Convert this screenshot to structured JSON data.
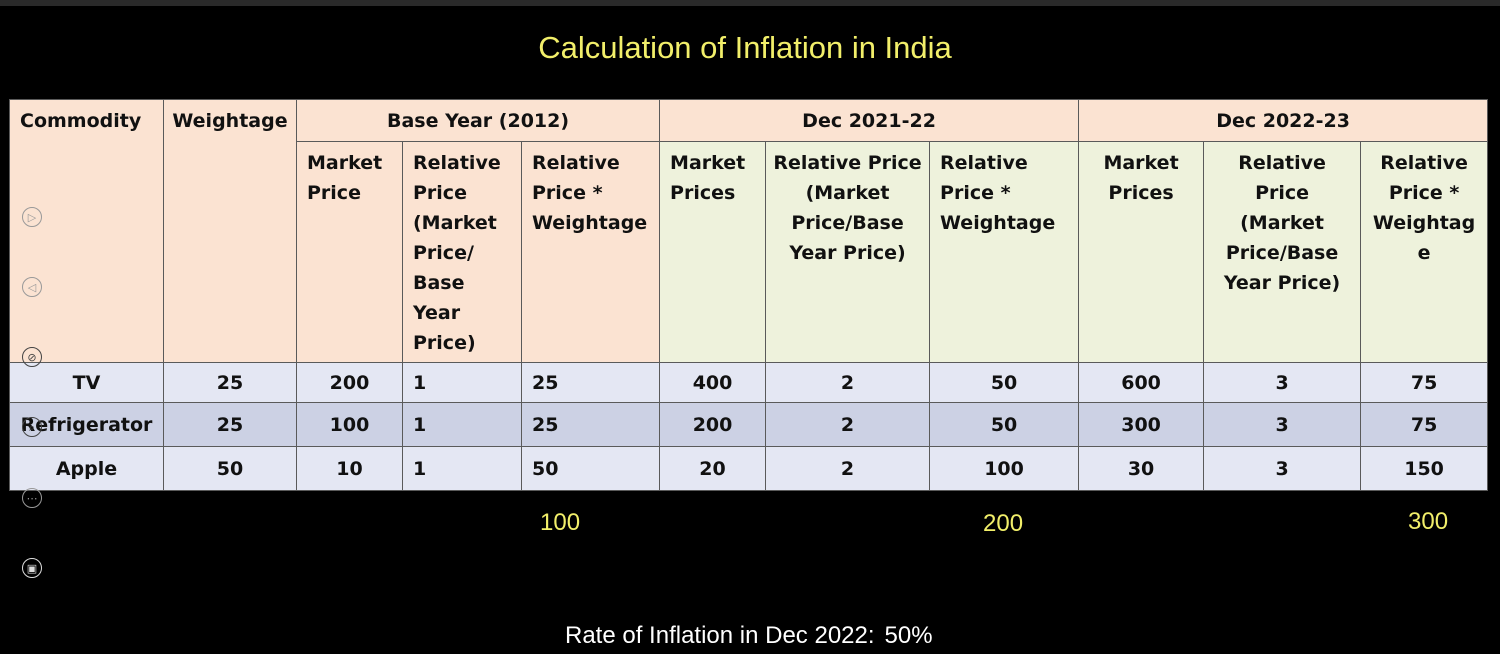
{
  "title": "Calculation of Inflation in India",
  "headers": {
    "commodity": "Commodity",
    "weightage": "Weightage",
    "groups": [
      "Base Year (2012)",
      "Dec 2021-22",
      "Dec 2022-23"
    ],
    "base": [
      "Market\nPrice",
      "Relative\nPrice\n(Market\nPrice/\nBase\nYear\nPrice)",
      "Relative\nPrice *\nWeightage"
    ],
    "dec21": [
      "Market\nPrices",
      "Relative Price\n(Market\nPrice/Base\nYear Price)",
      "Relative\nPrice *\nWeightage"
    ],
    "dec22": [
      "Market\nPrices",
      "Relative\nPrice\n(Market\nPrice/Base\nYear Price)",
      "Relative\nPrice *\nWeightag\ne"
    ]
  },
  "rows": [
    [
      "TV",
      "25",
      "200",
      "1",
      "25",
      "400",
      "2",
      "50",
      "600",
      "3",
      "75"
    ],
    [
      "Refrigerator",
      "25",
      "100",
      "1",
      "25",
      "200",
      "2",
      "50",
      "300",
      "3",
      "75"
    ],
    [
      "Apple",
      "50",
      "10",
      "1",
      "50",
      "20",
      "2",
      "100",
      "30",
      "3",
      "150"
    ]
  ],
  "totals": [
    "100",
    "200",
    "300"
  ],
  "rate_label": "Rate of Inflation in Dec 2022:",
  "rate_value": "50%",
  "colors": {
    "title": "#f2ef6a",
    "header_base": "#fbe3d2",
    "header_dec": "#eef2dc",
    "row_light": "#e4e7f3",
    "row_dark": "#ccd1e4"
  },
  "controls": [
    "next-slide-icon",
    "previous-slide-icon",
    "pen-icon",
    "zoom-icon",
    "more-options-icon",
    "screen-view-icon"
  ]
}
